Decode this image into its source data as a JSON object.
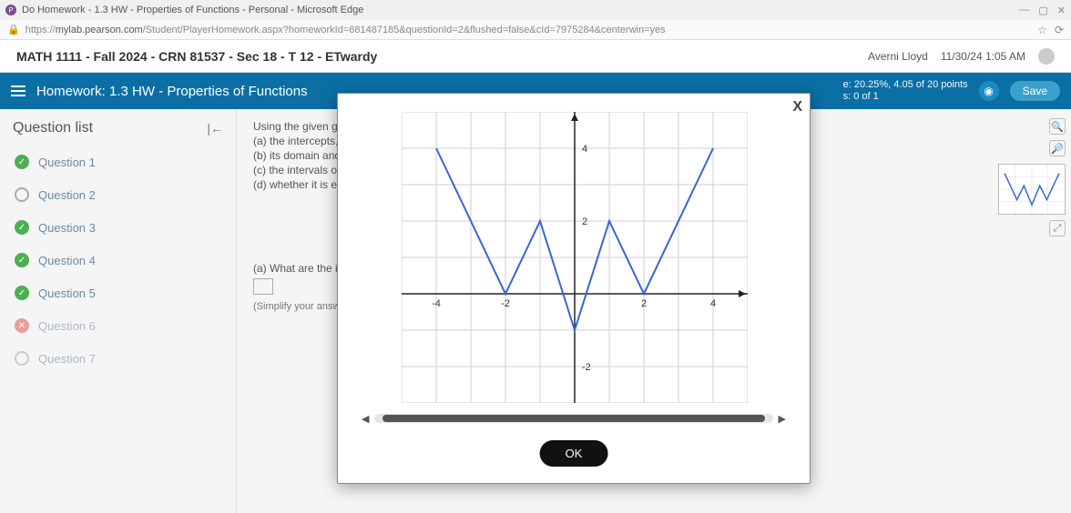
{
  "browser": {
    "window_title": "Do Homework - 1.3 HW - Properties of Functions - Personal - Microsoft Edge",
    "url_domain": "mylab.pearson.com",
    "url_path": "/Student/PlayerHomework.aspx?homeworkId=681487185&questionId=2&flushed=false&cId=7975284&centerwin=yes"
  },
  "header": {
    "course": "MATH 1111 - Fall 2024 - CRN 81537 - Sec 18 - T 12 - ETwardy",
    "user": "Averni Lloyd",
    "datetime": "11/30/24 1:05 AM"
  },
  "banner": {
    "title": "Homework: 1.3 HW - Properties of Functions",
    "score_line1": "e: 20.25%, 4.05 of 20 points",
    "score_line2": "s: 0 of 1",
    "save": "Save"
  },
  "question_list": {
    "heading": "Question list",
    "items": [
      {
        "label": "Question 1",
        "status": "complete"
      },
      {
        "label": "Question 2",
        "status": "empty"
      },
      {
        "label": "Question 3",
        "status": "complete"
      },
      {
        "label": "Question 4",
        "status": "complete"
      },
      {
        "label": "Question 5",
        "status": "complete"
      },
      {
        "label": "Question 6",
        "status": "wrong"
      },
      {
        "label": "Question 7",
        "status": "partial"
      }
    ]
  },
  "prompt": {
    "intro": "Using the given graph",
    "a": "(a)  the intercepts, if",
    "b": "(b)  its domain and",
    "c": "(c)  the intervals on",
    "d": "(d)  whether it is eve",
    "sub_a": "(a)  What are the int",
    "simplify": "(Simplify your answ"
  },
  "modal": {
    "ok": "OK",
    "close": "X",
    "axis_labels": {
      "x_neg": "-4",
      "x_mid_neg": "-2",
      "x_mid_pos": "2",
      "x_pos": "4",
      "y_top": "4",
      "y_mid": "2",
      "y_bot": "-2"
    },
    "chart": {
      "type": "line",
      "xlim": [
        -5,
        5
      ],
      "ylim": [
        -3,
        5
      ],
      "xtick_step": 1,
      "ytick_step": 1,
      "line_color": "#3a63d6",
      "line_width": 2,
      "grid_color": "#cfcfcf",
      "axis_color": "#222222",
      "background_color": "#ffffff",
      "points": [
        {
          "x": -4,
          "y": 4
        },
        {
          "x": -2,
          "y": 0
        },
        {
          "x": -1,
          "y": 2
        },
        {
          "x": 0,
          "y": -1
        },
        {
          "x": 1,
          "y": 2
        },
        {
          "x": 2,
          "y": 0
        },
        {
          "x": 4,
          "y": 4
        }
      ]
    }
  },
  "mini_chart": {
    "line_color": "#3a63d6",
    "grid_color": "#dcdcdc"
  }
}
